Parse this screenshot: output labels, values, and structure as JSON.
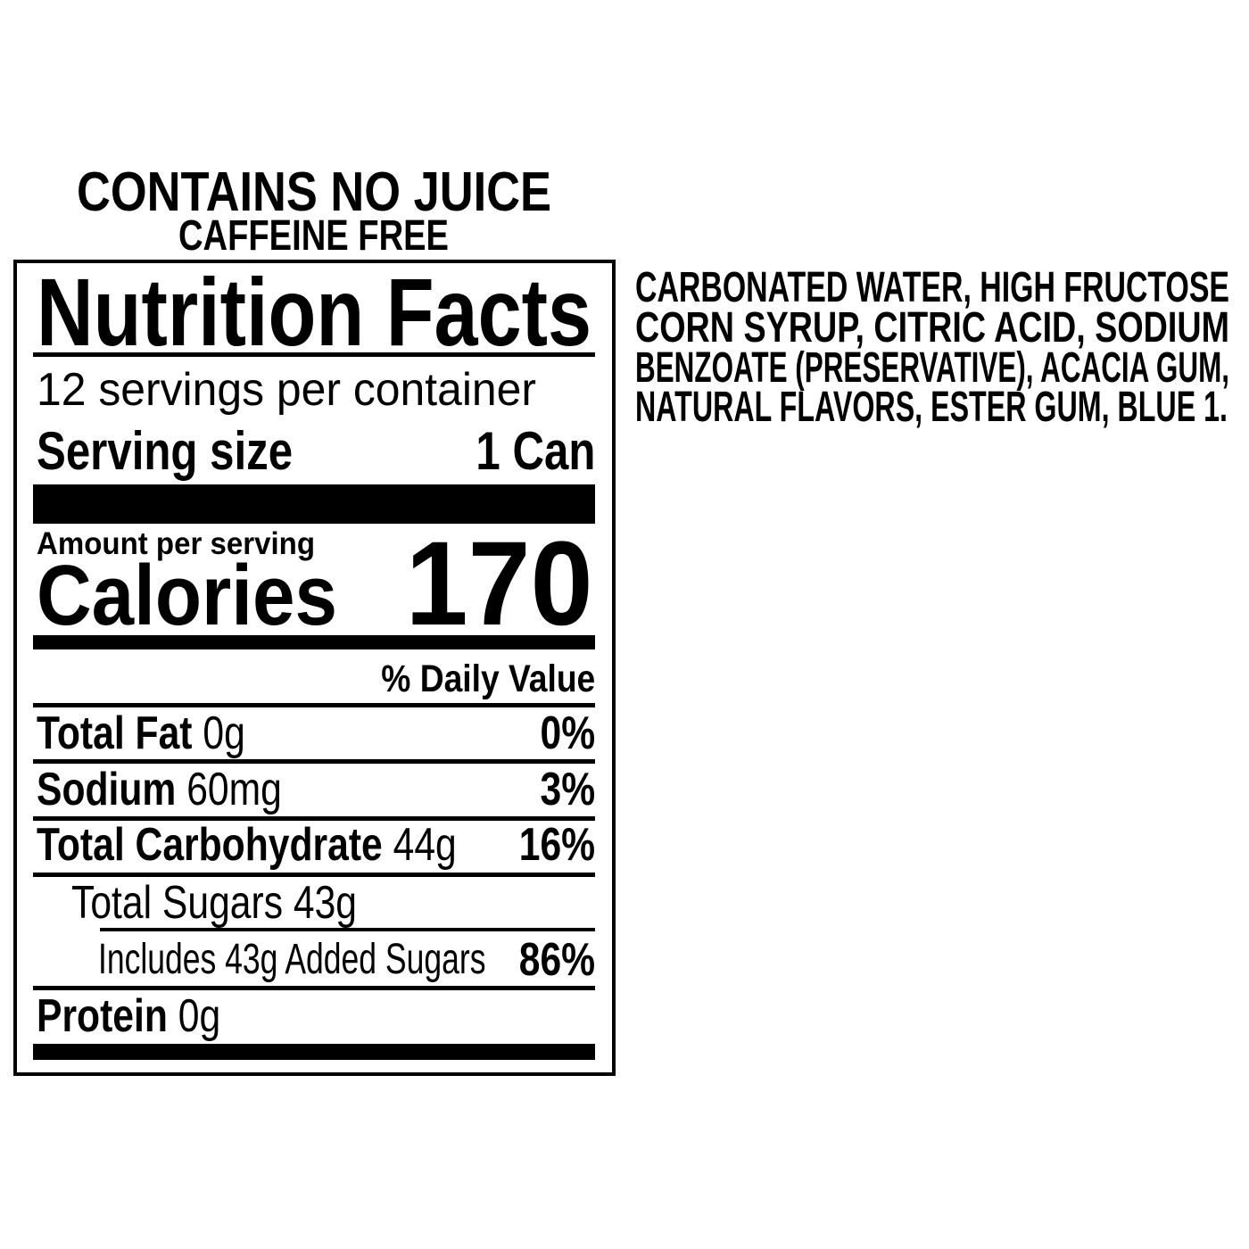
{
  "header": {
    "line1": "CONTAINS NO JUICE",
    "line2": "CAFFEINE FREE"
  },
  "label": {
    "title": "Nutrition Facts",
    "servings_per_container": "12 servings per container",
    "serving_size_label": "Serving size",
    "serving_size_value": "1 Can",
    "amount_per_serving": "Amount per serving",
    "calories_label": "Calories",
    "calories_value": "170",
    "daily_value_header": "% Daily Value",
    "nutrients": [
      {
        "name": "Total Fat",
        "amount": "0g",
        "dv": "0%"
      },
      {
        "name": "Sodium",
        "amount": "60mg",
        "dv": "3%"
      },
      {
        "name": "Total Carbohydrate",
        "amount": "44g",
        "dv": "16%"
      },
      {
        "name": "Total Sugars 43g",
        "amount": "",
        "dv": ""
      },
      {
        "name": "Includes 43g Added Sugars",
        "amount": "",
        "dv": "86%"
      },
      {
        "name": "Protein",
        "amount": "0g",
        "dv": ""
      }
    ]
  },
  "ingredients": {
    "lines": [
      "CARBONATED WATER, HIGH FRUCTOSE",
      "CORN SYRUP, CITRIC ACID, SODIUM",
      "BENZOATE (PRESERVATIVE), ACACIA GUM,",
      "NATURAL FLAVORS, ESTER GUM, BLUE 1."
    ]
  }
}
